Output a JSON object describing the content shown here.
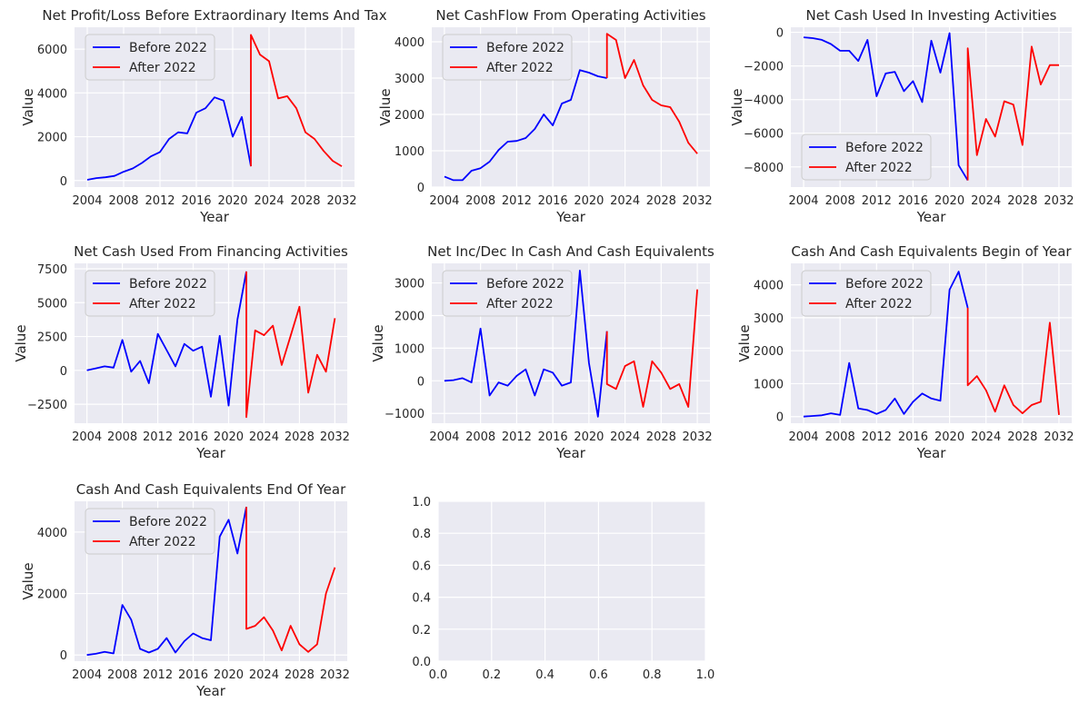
{
  "colors": {
    "before": "#0000ff",
    "after": "#ff0000"
  },
  "chart_data": [
    {
      "type": "line",
      "title": "Net Profit/Loss Before Extraordinary Items And Tax",
      "xlabel": "Year",
      "ylabel": "Value",
      "xlim": [
        2002.6,
        2033.4
      ],
      "ylim": [
        -300,
        7000
      ],
      "xticks": [
        2004,
        2008,
        2012,
        2016,
        2020,
        2024,
        2028,
        2032
      ],
      "yticks": [
        0,
        2000,
        4000,
        6000
      ],
      "grid": true,
      "legend": "upper-left",
      "series": [
        {
          "name": "Before 2022",
          "x": [
            2004,
            2005,
            2006,
            2007,
            2008,
            2009,
            2010,
            2011,
            2012,
            2013,
            2014,
            2015,
            2016,
            2017,
            2018,
            2019,
            2020,
            2021,
            2022
          ],
          "values": [
            30,
            110,
            150,
            210,
            400,
            550,
            800,
            1100,
            1300,
            1900,
            2200,
            2150,
            3100,
            3300,
            3800,
            3650,
            2000,
            2900,
            650
          ]
        },
        {
          "name": "After 2022",
          "x": [
            2022,
            2022,
            2023,
            2024,
            2025,
            2026,
            2027,
            2028,
            2029,
            2030,
            2031,
            2032
          ],
          "values": [
            650,
            6650,
            5750,
            5450,
            3750,
            3850,
            3300,
            2200,
            1900,
            1350,
            900,
            650
          ]
        }
      ]
    },
    {
      "type": "line",
      "title": "Net CashFlow From Operating Activities",
      "xlabel": "Year",
      "ylabel": "Value",
      "xlim": [
        2002.6,
        2033.4
      ],
      "ylim": [
        0,
        4400
      ],
      "xticks": [
        2004,
        2008,
        2012,
        2016,
        2020,
        2024,
        2028,
        2032
      ],
      "yticks": [
        0,
        1000,
        2000,
        3000,
        4000
      ],
      "grid": true,
      "legend": "upper-left",
      "series": [
        {
          "name": "Before 2022",
          "x": [
            2004,
            2005,
            2006,
            2007,
            2008,
            2009,
            2010,
            2011,
            2012,
            2013,
            2014,
            2015,
            2016,
            2017,
            2018,
            2019,
            2020,
            2021,
            2022
          ],
          "values": [
            290,
            190,
            190,
            450,
            520,
            700,
            1020,
            1250,
            1270,
            1350,
            1600,
            2000,
            1700,
            2300,
            2400,
            3220,
            3150,
            3050,
            3000
          ]
        },
        {
          "name": "After 2022",
          "x": [
            2022,
            2022,
            2023,
            2024,
            2025,
            2026,
            2027,
            2028,
            2029,
            2030,
            2031,
            2032
          ],
          "values": [
            3000,
            4220,
            4050,
            3000,
            3500,
            2800,
            2400,
            2250,
            2200,
            1800,
            1220,
            920
          ]
        }
      ]
    },
    {
      "type": "line",
      "title": "Net Cash Used In Investing Activities",
      "xlabel": "Year",
      "ylabel": "Value",
      "xlim": [
        2002.6,
        2033.4
      ],
      "ylim": [
        -9200,
        300
      ],
      "xticks": [
        2004,
        2008,
        2012,
        2016,
        2020,
        2024,
        2028,
        2032
      ],
      "yticks": [
        -8000,
        -6000,
        -4000,
        -2000,
        0
      ],
      "grid": true,
      "legend": "lower-left",
      "series": [
        {
          "name": "Before 2022",
          "x": [
            2004,
            2005,
            2006,
            2007,
            2008,
            2009,
            2010,
            2011,
            2012,
            2013,
            2014,
            2015,
            2016,
            2017,
            2018,
            2019,
            2020,
            2021,
            2022
          ],
          "values": [
            -300,
            -350,
            -450,
            -700,
            -1100,
            -1100,
            -1700,
            -450,
            -3800,
            -2450,
            -2350,
            -3500,
            -2900,
            -4150,
            -500,
            -2400,
            -50,
            -7900,
            -8800
          ]
        },
        {
          "name": "After 2022",
          "x": [
            2022,
            2022,
            2023,
            2024,
            2025,
            2026,
            2027,
            2028,
            2029,
            2030,
            2031,
            2032
          ],
          "values": [
            -8800,
            -950,
            -7300,
            -5150,
            -6200,
            -4100,
            -4300,
            -6700,
            -850,
            -3100,
            -1950,
            -1950
          ]
        }
      ]
    },
    {
      "type": "line",
      "title": "Net Cash Used From Financing Activities",
      "xlabel": "Year",
      "ylabel": "Value",
      "xlim": [
        2002.6,
        2033.4
      ],
      "ylim": [
        -3900,
        7900
      ],
      "xticks": [
        2004,
        2008,
        2012,
        2016,
        2020,
        2024,
        2028,
        2032
      ],
      "yticks": [
        -2500,
        0,
        2500,
        5000,
        7500
      ],
      "grid": true,
      "legend": "upper-left",
      "series": [
        {
          "name": "Before 2022",
          "x": [
            2004,
            2005,
            2006,
            2007,
            2008,
            2009,
            2010,
            2011,
            2012,
            2013,
            2014,
            2015,
            2016,
            2017,
            2018,
            2019,
            2020,
            2021,
            2022
          ],
          "values": [
            0,
            150,
            300,
            200,
            2250,
            -100,
            700,
            -950,
            2700,
            1500,
            300,
            1950,
            1450,
            1750,
            -1950,
            2550,
            -2600,
            3750,
            7300
          ]
        },
        {
          "name": "After 2022",
          "x": [
            2022,
            2022,
            2023,
            2024,
            2025,
            2026,
            2027,
            2028,
            2029,
            2030,
            2031,
            2032
          ],
          "values": [
            7300,
            -3450,
            2950,
            2600,
            3300,
            400,
            2550,
            4700,
            -1650,
            1150,
            -100,
            3850
          ]
        }
      ]
    },
    {
      "type": "line",
      "title": "Net Inc/Dec In Cash And Cash Equivalents",
      "xlabel": "Year",
      "ylabel": "Value",
      "xlim": [
        2002.6,
        2033.4
      ],
      "ylim": [
        -1300,
        3600
      ],
      "xticks": [
        2004,
        2008,
        2012,
        2016,
        2020,
        2024,
        2028,
        2032
      ],
      "yticks": [
        -1000,
        0,
        1000,
        2000,
        3000
      ],
      "grid": true,
      "legend": "upper-left",
      "series": [
        {
          "name": "Before 2022",
          "x": [
            2004,
            2005,
            2006,
            2007,
            2008,
            2009,
            2010,
            2011,
            2012,
            2013,
            2014,
            2015,
            2016,
            2017,
            2018,
            2019,
            2020,
            2021,
            2022
          ],
          "values": [
            0,
            20,
            80,
            -50,
            1600,
            -450,
            -50,
            -150,
            150,
            350,
            -450,
            350,
            250,
            -150,
            -50,
            3380,
            550,
            -1100,
            1520
          ]
        },
        {
          "name": "After 2022",
          "x": [
            2022,
            2022,
            2023,
            2024,
            2025,
            2026,
            2027,
            2028,
            2029,
            2030,
            2031,
            2032
          ],
          "values": [
            1520,
            -100,
            -250,
            450,
            600,
            -800,
            600,
            250,
            -250,
            -100,
            -800,
            2800
          ]
        }
      ]
    },
    {
      "type": "line",
      "title": "Cash And Cash Equivalents Begin of Year",
      "xlabel": "Year",
      "ylabel": "Value",
      "xlim": [
        2002.6,
        2033.4
      ],
      "ylim": [
        -200,
        4650
      ],
      "xticks": [
        2004,
        2008,
        2012,
        2016,
        2020,
        2024,
        2028,
        2032
      ],
      "yticks": [
        0,
        1000,
        2000,
        3000,
        4000
      ],
      "grid": true,
      "legend": "upper-left",
      "series": [
        {
          "name": "Before 2022",
          "x": [
            2004,
            2005,
            2006,
            2007,
            2008,
            2009,
            2010,
            2011,
            2012,
            2013,
            2014,
            2015,
            2016,
            2017,
            2018,
            2019,
            2020,
            2021,
            2022
          ],
          "values": [
            0,
            20,
            40,
            100,
            50,
            1630,
            250,
            200,
            80,
            200,
            550,
            80,
            450,
            700,
            550,
            480,
            3850,
            4400,
            3300
          ]
        },
        {
          "name": "After 2022",
          "x": [
            2022,
            2022,
            2023,
            2024,
            2025,
            2026,
            2027,
            2028,
            2029,
            2030,
            2031,
            2032
          ],
          "values": [
            3300,
            950,
            1230,
            800,
            150,
            950,
            350,
            100,
            350,
            450,
            2850,
            50
          ]
        }
      ]
    },
    {
      "type": "line",
      "title": "Cash And Cash Equivalents End Of Year",
      "xlabel": "Year",
      "ylabel": "Value",
      "xlim": [
        2002.6,
        2033.4
      ],
      "ylim": [
        -200,
        5000
      ],
      "xticks": [
        2004,
        2008,
        2012,
        2016,
        2020,
        2024,
        2028,
        2032
      ],
      "yticks": [
        0,
        2000,
        4000
      ],
      "grid": true,
      "legend": "upper-left",
      "series": [
        {
          "name": "Before 2022",
          "x": [
            2004,
            2005,
            2006,
            2007,
            2008,
            2009,
            2010,
            2011,
            2012,
            2013,
            2014,
            2015,
            2016,
            2017,
            2018,
            2019,
            2020,
            2021,
            2022
          ],
          "values": [
            0,
            40,
            100,
            50,
            1630,
            1150,
            200,
            80,
            200,
            550,
            80,
            450,
            700,
            550,
            480,
            3850,
            4400,
            3300,
            4820
          ]
        },
        {
          "name": "After 2022",
          "x": [
            2022,
            2022,
            2023,
            2024,
            2025,
            2026,
            2027,
            2028,
            2029,
            2030,
            2031,
            2032
          ],
          "values": [
            4820,
            850,
            950,
            1230,
            800,
            150,
            950,
            350,
            100,
            350,
            2000,
            2850
          ]
        }
      ]
    },
    {
      "type": "line",
      "title": "",
      "xlabel": "",
      "ylabel": "",
      "xlim": [
        0,
        1
      ],
      "ylim": [
        0,
        1
      ],
      "xticks": [
        0.0,
        0.2,
        0.4,
        0.6,
        0.8,
        1.0
      ],
      "yticks": [
        0.0,
        0.2,
        0.4,
        0.6,
        0.8,
        1.0
      ],
      "tick_format": "0.0",
      "grid": true,
      "legend": "none",
      "series": []
    }
  ]
}
